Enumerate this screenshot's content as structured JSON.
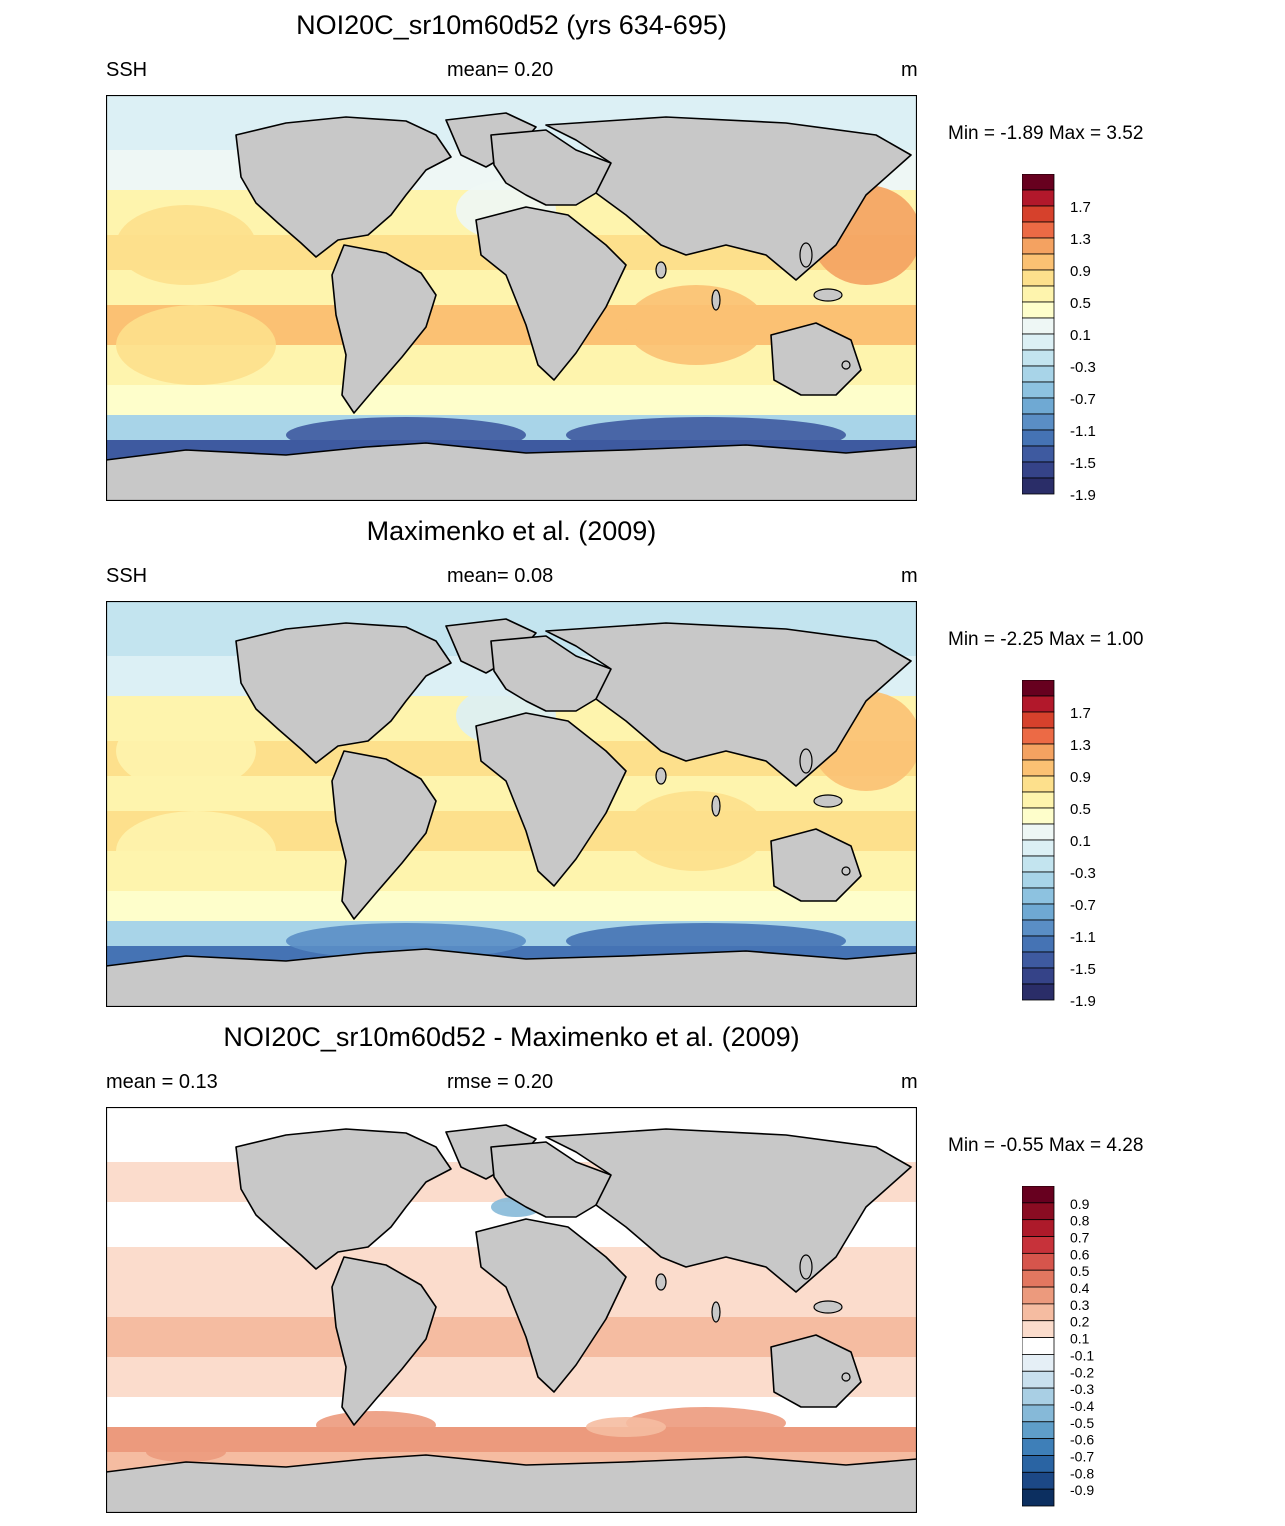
{
  "panels": [
    {
      "title": "NOI20C_sr10m60d52 (yrs 634-695)",
      "left_label": "SSH",
      "mid_label": "mean=   0.20",
      "units": "m",
      "minmax": "Min =  -1.89 Max =    3.52",
      "cmap": "ssh",
      "colorbar": {
        "labels": [
          "1.7",
          "1.3",
          "0.9",
          "0.5",
          "0.1",
          "-0.3",
          "-0.7",
          "-1.1",
          "-1.5",
          "-1.9"
        ],
        "colors": [
          "#67001f",
          "#b2182b",
          "#d6412c",
          "#ec6a45",
          "#f4a261",
          "#fbc173",
          "#fde08c",
          "#fef4ad",
          "#fefecb",
          "#eef7f5",
          "#dcf0f5",
          "#c3e4ef",
          "#a8d4e8",
          "#8dc2e0",
          "#6fa9d3",
          "#5a8ec5",
          "#4573b4",
          "#3e5aa0",
          "#354388",
          "#2a2d68"
        ],
        "tick_every": 2
      },
      "field": {
        "eq": 0.65,
        "sub": 0.45,
        "hi": -0.15,
        "south": -1.9,
        "has_positive_bias": false
      }
    },
    {
      "title": "Maximenko et al. (2009)",
      "left_label": "SSH",
      "mid_label": "mean=   0.08",
      "units": "m",
      "minmax": "Min =  -2.25 Max =    1.00",
      "cmap": "ssh",
      "colorbar": {
        "labels": [
          "1.7",
          "1.3",
          "0.9",
          "0.5",
          "0.1",
          "-0.3",
          "-0.7",
          "-1.1",
          "-1.5",
          "-1.9"
        ],
        "colors": [
          "#67001f",
          "#b2182b",
          "#d6412c",
          "#ec6a45",
          "#f4a261",
          "#fbc173",
          "#fde08c",
          "#fef4ad",
          "#fefecb",
          "#eef7f5",
          "#dcf0f5",
          "#c3e4ef",
          "#a8d4e8",
          "#8dc2e0",
          "#6fa9d3",
          "#5a8ec5",
          "#4573b4",
          "#3e5aa0",
          "#354388",
          "#2a2d68"
        ],
        "tick_every": 2
      },
      "field": {
        "eq": 0.55,
        "sub": 0.45,
        "hi": -0.35,
        "south": -1.7,
        "has_positive_bias": false
      }
    },
    {
      "title": "NOI20C_sr10m60d52 - Maximenko et al. (2009)",
      "left_label": "mean =   0.13",
      "mid_label": "rmse =   0.20",
      "units": "m",
      "minmax": "Min =  -0.55 Max =    4.28",
      "cmap": "diff",
      "colorbar": {
        "labels": [
          "0.9",
          "0.8",
          "0.7",
          "0.6",
          "0.5",
          "0.4",
          "0.3",
          "0.2",
          "0.1",
          "-0.1",
          "-0.2",
          "-0.3",
          "-0.4",
          "-0.5",
          "-0.6",
          "-0.7",
          "-0.8",
          "-0.9"
        ],
        "colors": [
          "#67001f",
          "#8a0c22",
          "#ad1a2a",
          "#c7323a",
          "#d6554c",
          "#e27760",
          "#ec9a7d",
          "#f5bca1",
          "#fbdccc",
          "#ffffff",
          "#e5eff6",
          "#c9e0ee",
          "#a9cfe4",
          "#86b9d8",
          "#5f9ec9",
          "#3e7fb8",
          "#2a64a3",
          "#1c4886",
          "#0c2f60"
        ],
        "tick_every": 1
      },
      "field": {
        "eq": 0.1,
        "sub": 0.18,
        "hi": 0.0,
        "south": 0.35,
        "has_positive_bias": true
      }
    }
  ]
}
